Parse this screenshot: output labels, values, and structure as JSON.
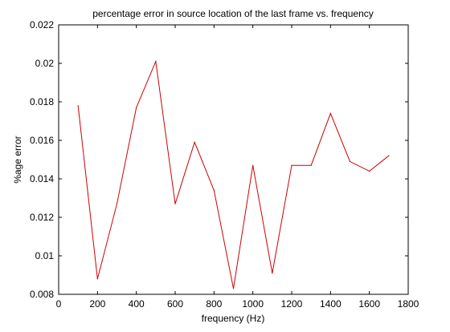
{
  "chart_data": {
    "type": "line",
    "title": "percentage error in source location of the last frame vs. frequency",
    "xlabel": "frequency (Hz)",
    "ylabel": "%age error",
    "xlim": [
      0,
      1800
    ],
    "ylim": [
      0.008,
      0.022
    ],
    "xticks": [
      "0",
      "200",
      "400",
      "600",
      "800",
      "1000",
      "1200",
      "1400",
      "1600",
      "1800"
    ],
    "yticks": [
      "0.008",
      "0.01",
      "0.012",
      "0.014",
      "0.016",
      "0.018",
      "0.02",
      "0.022"
    ],
    "grid": false,
    "series": [
      {
        "color": "#cc0000",
        "x": [
          100,
          200,
          300,
          400,
          500,
          600,
          700,
          800,
          900,
          1000,
          1100,
          1200,
          1300,
          1400,
          1500,
          1600,
          1700
        ],
        "y": [
          0.0178,
          0.0088,
          0.0127,
          0.0177,
          0.0201,
          0.0127,
          0.0159,
          0.0134,
          0.0083,
          0.0147,
          0.0091,
          0.0147,
          0.0147,
          0.0174,
          0.0149,
          0.0144,
          0.0152
        ]
      }
    ]
  }
}
